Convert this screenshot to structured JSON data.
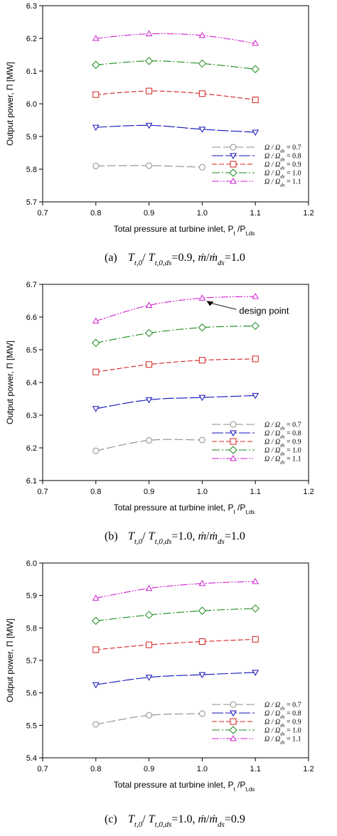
{
  "colors": {
    "series": [
      "#8c8c8c",
      "#1010b8",
      "#d42020",
      "#1a8a1a",
      "#d020d0"
    ]
  },
  "chart_data": [
    {
      "type": "line",
      "x": [
        0.8,
        0.9,
        1.0,
        1.1
      ],
      "xlim": [
        0.7,
        1.2
      ],
      "ylim": [
        5.7,
        6.3
      ],
      "xticks": [
        "0.7",
        "0.8",
        "0.9",
        "1.0",
        "1.1",
        "1.2"
      ],
      "yticks": [
        "5.7",
        "5.8",
        "5.9",
        "6.0",
        "6.1",
        "6.2",
        "6.3"
      ],
      "ylabel": "Output power, Π [MW]",
      "xlabel": "Total pressure at turbine inlet, P",
      "xlabel_sub1": "t",
      "xlabel_mid": " /P",
      "xlabel_sub2": "t,ds",
      "legend_position": "bottom-right",
      "caption_label": "(a)",
      "caption_t": "T",
      "caption_t_sub": "t,0",
      "caption_slash": "/",
      "caption_t2": "T",
      "caption_t2_sub": "t,0,ds",
      "caption_val1": "=0.9,",
      "caption_m": "ṁ",
      "caption_slash2": "/",
      "caption_m2": "ṁ",
      "caption_m2_sub": "ds",
      "caption_val2": "=1.0",
      "series": [
        {
          "name": "Ω / Ω_ds = 0.7",
          "values": [
            5.81,
            5.811,
            5.806,
            null
          ],
          "dense": [
            [
              0.8,
              5.809
            ],
            [
              0.85,
              5.811
            ],
            [
              0.9,
              5.811
            ],
            [
              0.95,
              5.81
            ],
            [
              1.0,
              5.806
            ]
          ],
          "marker": "circle"
        },
        {
          "name": "Ω / Ω_ds = 0.8",
          "values": [
            5.928,
            5.934,
            5.922,
            5.913
          ],
          "marker": "triangle-down"
        },
        {
          "name": "Ω / Ω_ds = 0.9",
          "values": [
            6.028,
            6.039,
            6.031,
            6.012
          ],
          "marker": "square"
        },
        {
          "name": "Ω / Ω_ds = 1.0",
          "values": [
            6.119,
            6.131,
            6.123,
            6.106
          ],
          "marker": "diamond"
        },
        {
          "name": "Ω / Ω_ds = 1.1",
          "values": [
            6.2,
            6.214,
            6.209,
            6.185
          ],
          "marker": "triangle-up"
        }
      ]
    },
    {
      "type": "line",
      "x": [
        0.8,
        0.9,
        1.0,
        1.1
      ],
      "xlim": [
        0.7,
        1.2
      ],
      "ylim": [
        6.1,
        6.7
      ],
      "xticks": [
        "0.7",
        "0.8",
        "0.9",
        "1.0",
        "1.1",
        "1.2"
      ],
      "yticks": [
        "6.1",
        "6.2",
        "6.3",
        "6.4",
        "6.5",
        "6.6",
        "6.7"
      ],
      "ylabel": "Output power, Π [MW]",
      "xlabel": "Total pressure at turbine inlet, P",
      "xlabel_sub1": "t",
      "xlabel_mid": " /P",
      "xlabel_sub2": "t,ds",
      "legend_position": "bottom-right",
      "annotation": "design point",
      "annotation_target": [
        1.0,
        6.658
      ],
      "caption_label": "(b)",
      "caption_t": "T",
      "caption_t_sub": "t,0",
      "caption_slash": "/",
      "caption_t2": "T",
      "caption_t2_sub": "t,0,ds",
      "caption_val1": "=1.0,",
      "caption_m": "ṁ",
      "caption_slash2": "/",
      "caption_m2": "ṁ",
      "caption_m2_sub": "ds",
      "caption_val2": "=1.0",
      "series": [
        {
          "name": "Ω / Ω_ds = 0.7",
          "values": [
            6.191,
            6.223,
            6.224,
            null
          ],
          "marker": "circle"
        },
        {
          "name": "Ω / Ω_ds = 0.8",
          "values": [
            6.32,
            6.347,
            6.354,
            6.36
          ],
          "marker": "triangle-down"
        },
        {
          "name": "Ω / Ω_ds = 0.9",
          "values": [
            6.432,
            6.455,
            6.468,
            6.472
          ],
          "marker": "square"
        },
        {
          "name": "Ω / Ω_ds = 1.0",
          "values": [
            6.521,
            6.551,
            6.568,
            6.573
          ],
          "marker": "diamond"
        },
        {
          "name": "Ω / Ω_ds = 1.1",
          "values": [
            6.588,
            6.636,
            6.658,
            6.663
          ],
          "marker": "triangle-up"
        }
      ]
    },
    {
      "type": "line",
      "x": [
        0.8,
        0.9,
        1.0,
        1.1
      ],
      "xlim": [
        0.7,
        1.2
      ],
      "ylim": [
        5.4,
        6.0
      ],
      "xticks": [
        "0.7",
        "0.8",
        "0.9",
        "1.0",
        "1.1",
        "1.2"
      ],
      "yticks": [
        "5.4",
        "5.5",
        "5.6",
        "5.7",
        "5.8",
        "5.9",
        "6.0"
      ],
      "ylabel": "Output power, Π [MW]",
      "xlabel": "Total pressure at turbine inlet, P",
      "xlabel_sub1": "t",
      "xlabel_mid": " /P",
      "xlabel_sub2": "t,ds",
      "legend_position": "bottom-right",
      "caption_label": "(c)",
      "caption_t": "T",
      "caption_t_sub": "t,0",
      "caption_slash": "/",
      "caption_t2": "T",
      "caption_t2_sub": "t,0,ds",
      "caption_val1": "=1.0,",
      "caption_m": "ṁ",
      "caption_slash2": "/",
      "caption_m2": "ṁ",
      "caption_m2_sub": "ds",
      "caption_val2": "=0.9",
      "series": [
        {
          "name": "Ω / Ω_ds = 0.7",
          "values": [
            5.503,
            5.531,
            5.536,
            null
          ],
          "marker": "circle"
        },
        {
          "name": "Ω / Ω_ds = 0.8",
          "values": [
            5.625,
            5.648,
            5.656,
            5.663
          ],
          "marker": "triangle-down"
        },
        {
          "name": "Ω / Ω_ds = 0.9",
          "values": [
            5.733,
            5.748,
            5.758,
            5.765
          ],
          "marker": "square"
        },
        {
          "name": "Ω / Ω_ds = 1.0",
          "values": [
            5.822,
            5.84,
            5.853,
            5.86
          ],
          "marker": "diamond"
        },
        {
          "name": "Ω / Ω_ds = 1.1",
          "values": [
            5.892,
            5.922,
            5.937,
            5.943
          ],
          "marker": "triangle-up"
        }
      ]
    }
  ]
}
